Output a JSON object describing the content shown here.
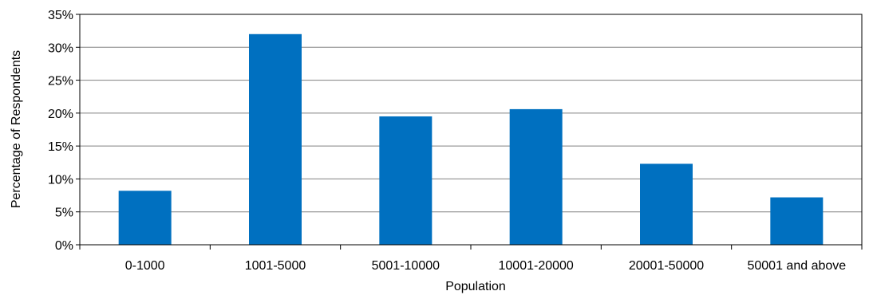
{
  "chart_data": {
    "type": "bar",
    "title": "",
    "xlabel": "Population",
    "ylabel": "Percentage of Respondents",
    "categories": [
      "0-1000",
      "1001-5000",
      "5001-10000",
      "10001-20000",
      "20001-50000",
      "50001 and above"
    ],
    "values": [
      8.2,
      32.0,
      19.5,
      20.6,
      12.3,
      7.2
    ],
    "ylim": [
      0,
      35
    ],
    "yticks": [
      0,
      5,
      10,
      15,
      20,
      25,
      30,
      35
    ],
    "ytick_labels": [
      "0%",
      "5%",
      "10%",
      "15%",
      "20%",
      "25%",
      "30%",
      "35%"
    ],
    "grid": "horizontal",
    "legend": "none",
    "colors": {
      "bar": "#0070C0",
      "grid": "#808080",
      "frame": "#000000"
    }
  }
}
